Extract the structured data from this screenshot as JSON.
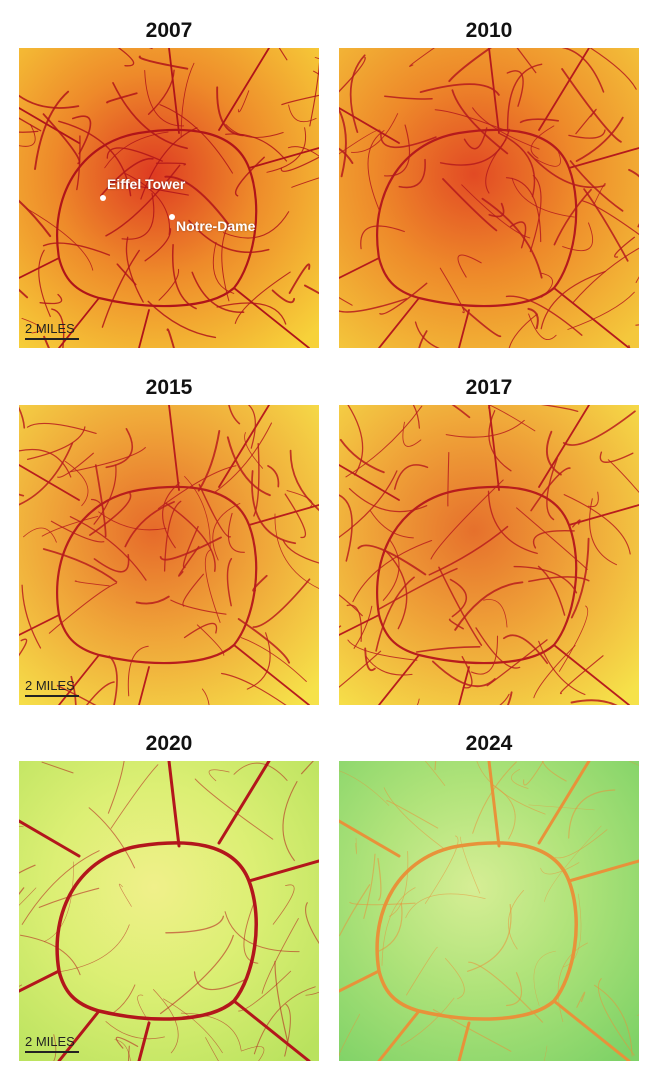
{
  "panels": [
    {
      "year": "2007",
      "scale_label": "2 MILES",
      "colors": {
        "edge": "#f7d23a",
        "mid": "#ee8a2a",
        "core": "#de3b22",
        "road": "#b0141a"
      }
    },
    {
      "year": "2010",
      "colors": {
        "edge": "#f4c83c",
        "mid": "#ee8a2a",
        "core": "#e24a24",
        "road": "#b51a1d"
      }
    },
    {
      "year": "2015",
      "scale_label": "2 MILES",
      "colors": {
        "edge": "#f6e24a",
        "mid": "#efa238",
        "core": "#e66a2a",
        "road": "#b81d1d"
      }
    },
    {
      "year": "2017",
      "colors": {
        "edge": "#f6e24a",
        "mid": "#efa238",
        "core": "#e6702c",
        "road": "#b81d1d"
      }
    },
    {
      "year": "2020",
      "scale_label": "2 MILES",
      "colors": {
        "edge": "#b9e25e",
        "mid": "#dcef74",
        "core": "#f0f08a",
        "road": "#b3161c"
      }
    },
    {
      "year": "2024",
      "colors": {
        "edge": "#7fd267",
        "mid": "#b0e37a",
        "core": "#d6ee95",
        "road": "#e8923a"
      }
    }
  ],
  "landmarks": [
    {
      "label": "Eiffel Tower"
    },
    {
      "label": "Notre-Dame"
    }
  ]
}
